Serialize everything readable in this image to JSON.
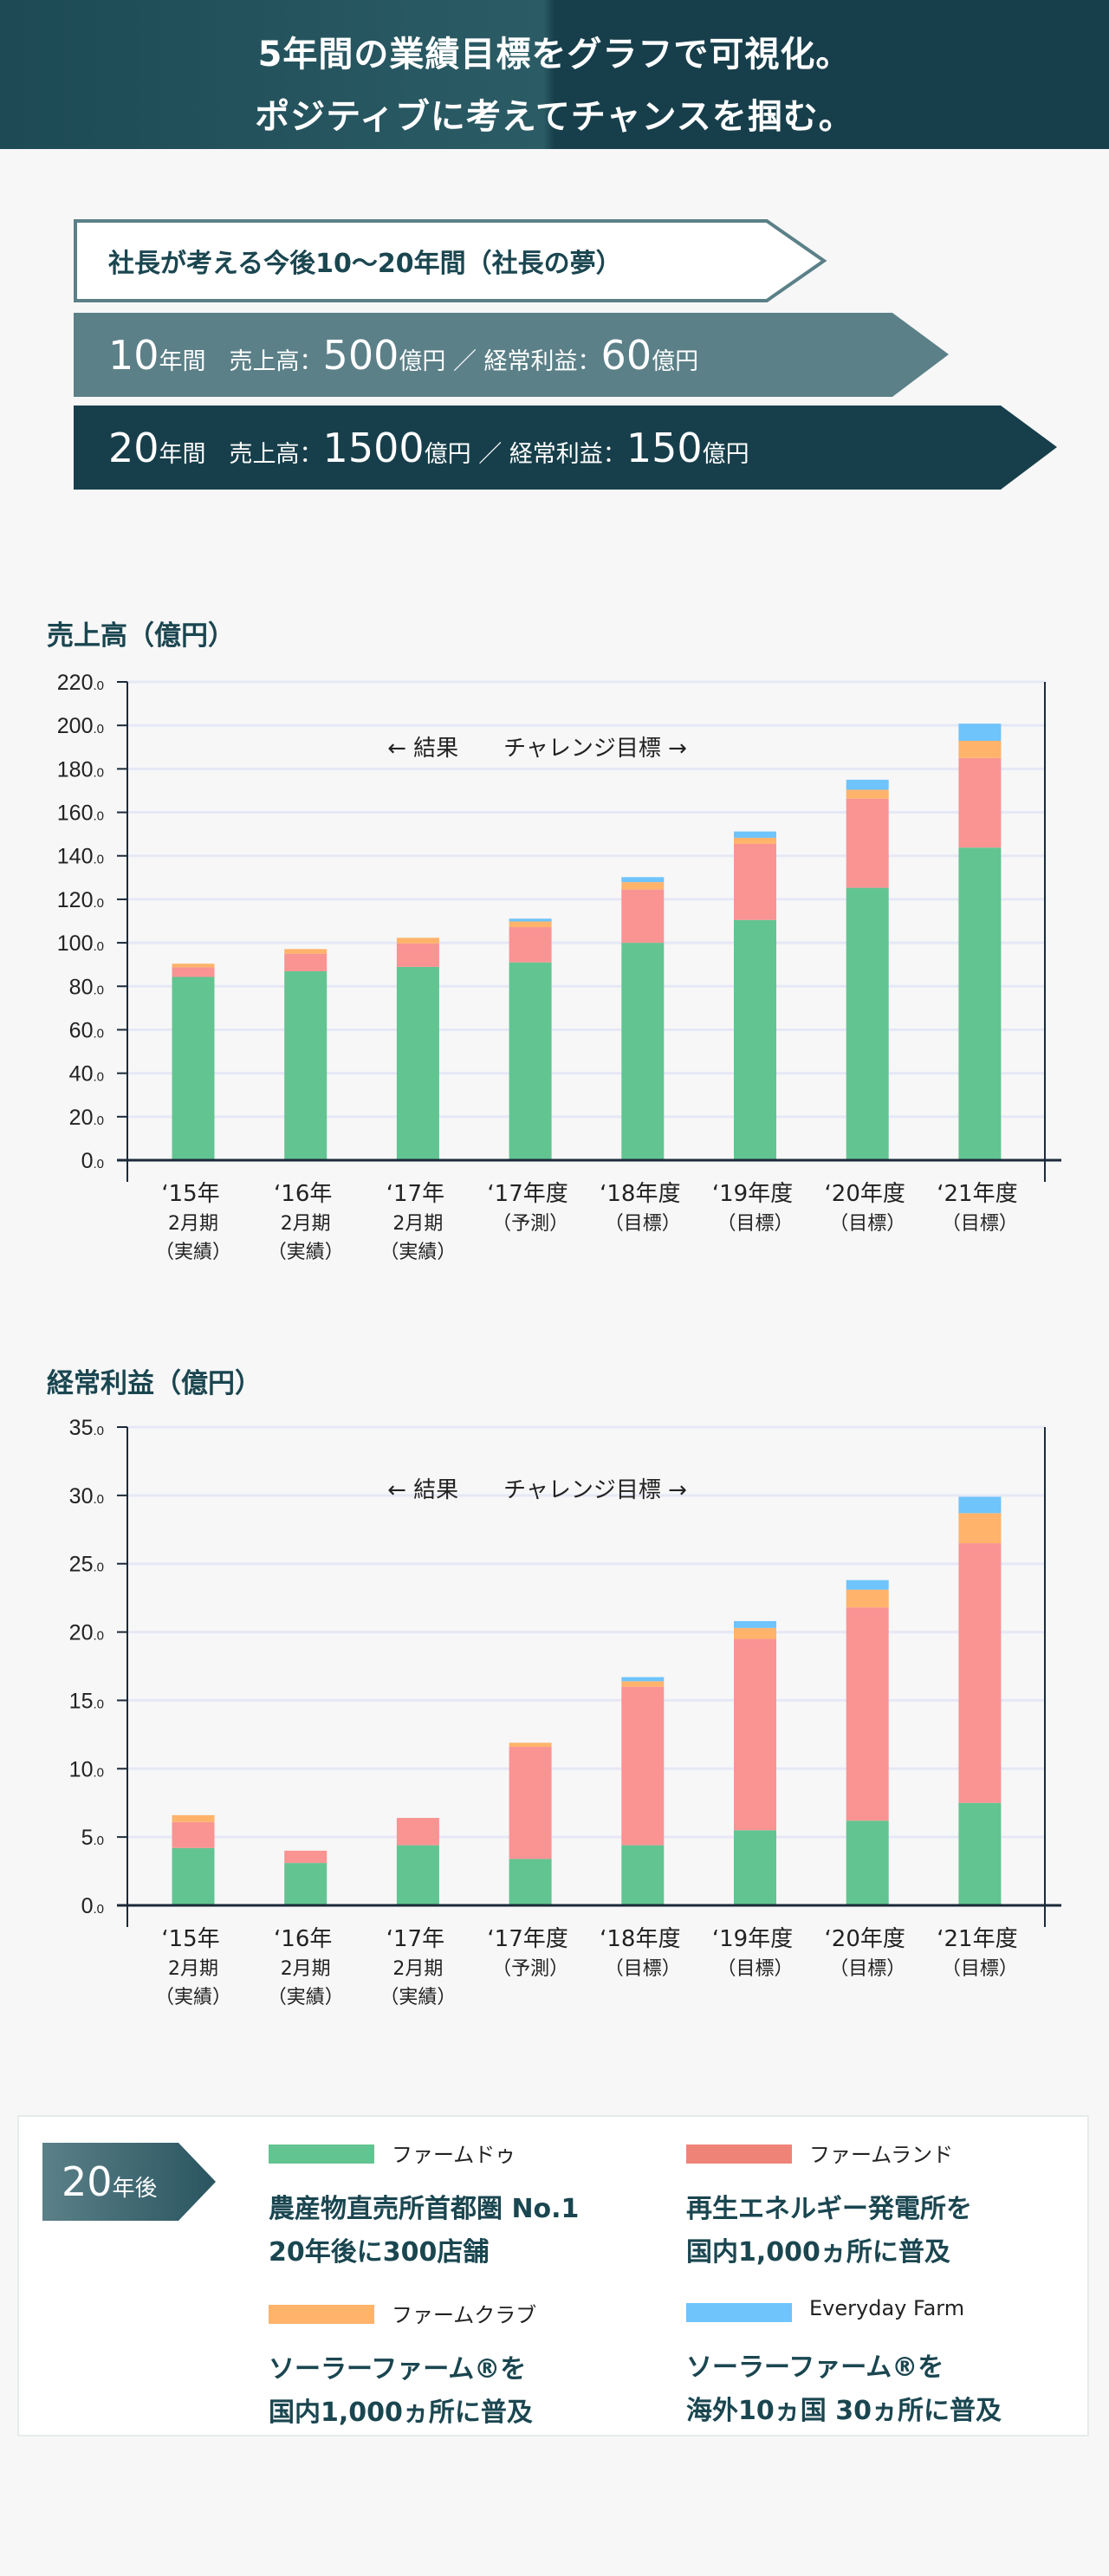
{
  "header": {
    "line1": "5年間の業績目標をグラフで可視化。",
    "line2": "ポジティブに考えてチャンスを掴む。"
  },
  "goals": {
    "dream": "社長が考える今後10〜20年間（社長の夢）",
    "ten": {
      "years": "10",
      "unit": "年間",
      "sales_label": "売上高：",
      "sales": "500",
      "yen": "億円",
      "sep": "／",
      "profit_label": "経常利益：",
      "profit": "60"
    },
    "twenty": {
      "years": "20",
      "unit": "年間",
      "sales_label": "売上高：",
      "sales": "1500",
      "yen": "億円",
      "sep": "／",
      "profit_label": "経常利益：",
      "profit": "150"
    }
  },
  "chart_data": [
    {
      "type": "bar",
      "stacked": true,
      "title": "売上高（億円）",
      "annotation": "← 結果　　チャレンジ目標 →",
      "ylim": [
        0,
        220
      ],
      "ystep": 20,
      "grid": true,
      "categories": [
        [
          "‘15年",
          "2月期",
          "（実績）"
        ],
        [
          "‘16年",
          "2月期",
          "（実績）"
        ],
        [
          "‘17年",
          "2月期",
          "（実績）"
        ],
        [
          "‘17年度",
          "（予測）"
        ],
        [
          "‘18年度",
          "（目標）"
        ],
        [
          "‘19年度",
          "（目標）"
        ],
        [
          "‘20年度",
          "（目標）"
        ],
        [
          "‘21年度",
          "（目標）"
        ]
      ],
      "series": [
        {
          "name": "ファームドゥ",
          "values": [
            84.3,
            86.9,
            88.9,
            91.0,
            100.0,
            110.5,
            125.3,
            143.8
          ]
        },
        {
          "name": "ファームランド",
          "values": [
            4.4,
            8.1,
            10.8,
            16.2,
            24.5,
            35.0,
            41.0,
            41.2
          ]
        },
        {
          "name": "ファームクラブ",
          "values": [
            1.7,
            2.1,
            2.6,
            2.6,
            3.4,
            2.8,
            4.1,
            7.9
          ]
        },
        {
          "name": "Everyday Farm",
          "values": [
            0,
            0,
            0,
            1.3,
            2.3,
            2.9,
            4.6,
            7.9
          ]
        }
      ]
    },
    {
      "type": "bar",
      "stacked": true,
      "title": "経常利益（億円）",
      "annotation": "← 結果　　チャレンジ目標 →",
      "ylim": [
        0,
        35
      ],
      "ystep": 5,
      "grid": true,
      "categories": [
        [
          "‘15年",
          "2月期",
          "（実績）"
        ],
        [
          "‘16年",
          "2月期",
          "（実績）"
        ],
        [
          "‘17年",
          "2月期",
          "（実績）"
        ],
        [
          "‘17年度",
          "（予測）"
        ],
        [
          "‘18年度",
          "（目標）"
        ],
        [
          "‘19年度",
          "（目標）"
        ],
        [
          "‘20年度",
          "（目標）"
        ],
        [
          "‘21年度",
          "（目標）"
        ]
      ],
      "series": [
        {
          "name": "ファームドゥ",
          "values": [
            4.2,
            3.1,
            4.4,
            3.4,
            4.4,
            5.5,
            6.2,
            7.5
          ]
        },
        {
          "name": "ファームランド",
          "values": [
            1.9,
            0.9,
            2.0,
            8.2,
            11.6,
            14.0,
            15.6,
            19.0
          ]
        },
        {
          "name": "ファームクラブ",
          "values": [
            0.5,
            0,
            0,
            0.3,
            0.4,
            0.8,
            1.3,
            2.2
          ]
        },
        {
          "name": "Everyday Farm",
          "values": [
            0,
            0,
            0,
            0,
            0.3,
            0.5,
            0.7,
            1.2
          ]
        }
      ]
    }
  ],
  "colors": {
    "ファームドゥ": "#62c491",
    "ファームランド": "#f99493",
    "ファームクラブ": "#ffb36b",
    "Everyday Farm": "#6ec4fb",
    "legend_ファームランド": "#f08378",
    "header": "#173f4b",
    "mid": "#5b8088"
  },
  "legend": {
    "badge_num": "20",
    "badge_unit": "年後",
    "items": [
      {
        "name": "ファームドゥ",
        "line1": "農産物直売所首都圏 No.1",
        "line2": "20年後に300店舗"
      },
      {
        "name": "ファームランド",
        "line1": "再生エネルギー発電所を",
        "line2": "国内1,000ヵ所に普及"
      },
      {
        "name": "ファームクラブ",
        "line1": "ソーラーファーム®を",
        "line2": "国内1,000ヵ所に普及"
      },
      {
        "name": "Everyday Farm",
        "line1": "ソーラーファーム®を",
        "line2": "海外10ヵ国 30ヵ所に普及"
      }
    ]
  }
}
